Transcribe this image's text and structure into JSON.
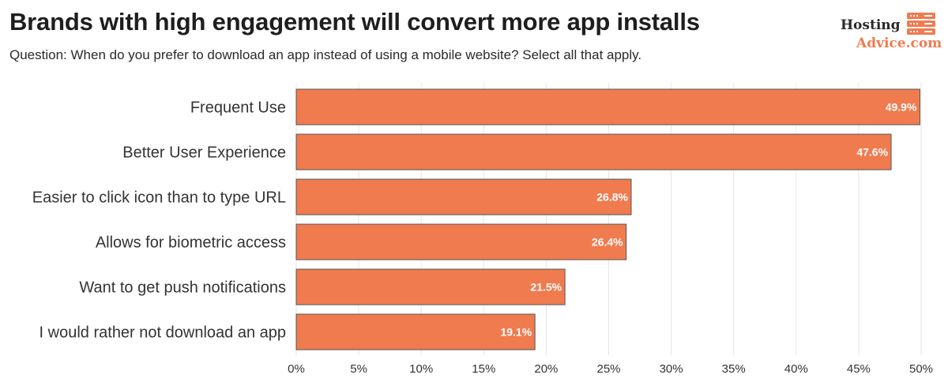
{
  "header": {
    "title": "Brands with high engagement will convert more app installs",
    "subtitle": "Question: When do you prefer to download an app instead of using a mobile website? Select all that apply."
  },
  "logo": {
    "line1": "Hosting",
    "line2": "Advice.com",
    "icon": "server-stack-icon",
    "accent_color": "#f07b4f"
  },
  "chart_data": {
    "type": "bar",
    "orientation": "horizontal",
    "categories": [
      "Frequent Use",
      "Better User Experience",
      "Easier to click icon than to type URL",
      "Allows for biometric access",
      "Want to get push notifications",
      "I would rather not download an app"
    ],
    "values": [
      49.9,
      47.6,
      26.8,
      26.4,
      21.5,
      19.1
    ],
    "value_labels": [
      "49.9%",
      "47.6%",
      "26.8%",
      "26.4%",
      "21.5%",
      "19.1%"
    ],
    "x_ticks": [
      "0%",
      "5%",
      "10%",
      "15%",
      "20%",
      "25%",
      "30%",
      "35%",
      "40%",
      "45%",
      "50%"
    ],
    "xlim": [
      0,
      50
    ],
    "grid": "vertical",
    "bar_color": "#f07b4f",
    "bar_edge_color": "#555555"
  }
}
